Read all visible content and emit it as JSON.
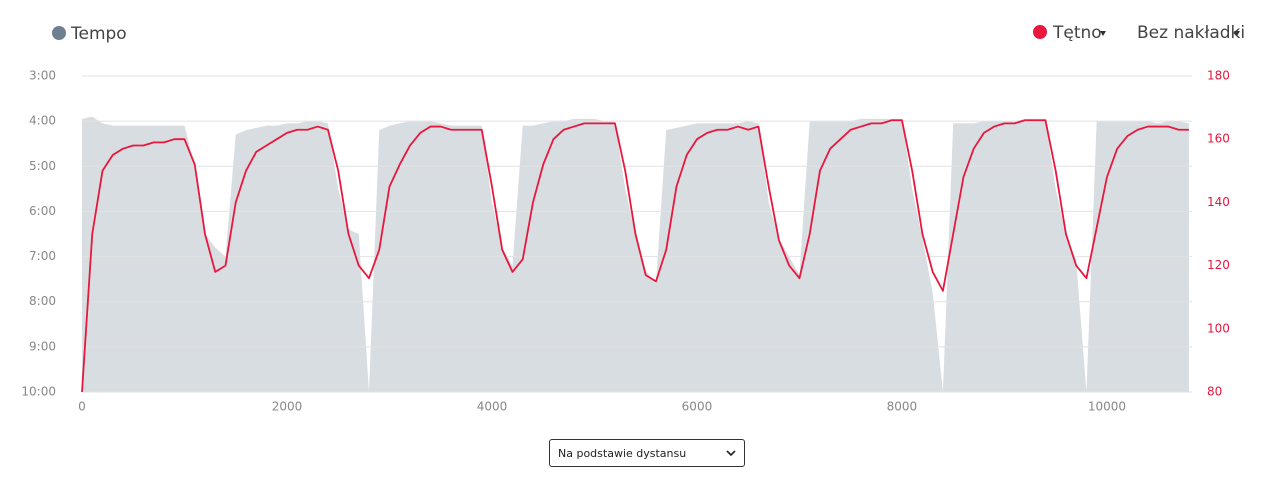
{
  "chart_data": {
    "type": "line",
    "x": [
      0,
      100,
      200,
      300,
      400,
      500,
      600,
      700,
      800,
      900,
      1000,
      1100,
      1200,
      1300,
      1400,
      1500,
      1600,
      1700,
      1800,
      1900,
      2000,
      2100,
      2200,
      2300,
      2400,
      2500,
      2600,
      2700,
      2800,
      2900,
      3000,
      3100,
      3200,
      3300,
      3400,
      3500,
      3600,
      3700,
      3800,
      3900,
      4000,
      4100,
      4200,
      4300,
      4400,
      4500,
      4600,
      4700,
      4800,
      4900,
      5000,
      5100,
      5200,
      5300,
      5400,
      5500,
      5600,
      5700,
      5800,
      5900,
      6000,
      6100,
      6200,
      6300,
      6400,
      6500,
      6600,
      6700,
      6800,
      6900,
      7000,
      7100,
      7200,
      7300,
      7400,
      7500,
      7600,
      7700,
      7800,
      7900,
      8000,
      8100,
      8200,
      8300,
      8400,
      8500,
      8600,
      8700,
      8800,
      8900,
      9000,
      9100,
      9200,
      9300,
      9400,
      9500,
      9600,
      9700,
      9800,
      9900,
      10000,
      10100,
      10200,
      10300,
      10400,
      10500,
      10600,
      10700,
      10800
    ],
    "xlim": [
      0,
      10830
    ],
    "xticks": [
      0,
      2000,
      4000,
      6000,
      8000,
      10000
    ],
    "ylim": [
      10,
      3
    ],
    "yticks": [
      {
        "value": 3,
        "label": "3:00"
      },
      {
        "value": 4,
        "label": "4:00"
      },
      {
        "value": 5,
        "label": "5:00"
      },
      {
        "value": 6,
        "label": "6:00"
      },
      {
        "value": 7,
        "label": "7:00"
      },
      {
        "value": 8,
        "label": "8:00"
      },
      {
        "value": 9,
        "label": "9:00"
      },
      {
        "value": 10,
        "label": "10:00"
      }
    ],
    "y2lim": [
      80,
      180
    ],
    "y2ticks": [
      80,
      100,
      120,
      140,
      160,
      180
    ],
    "grid": true,
    "series": [
      {
        "name": "Tempo",
        "type": "area",
        "color": "#6e8090",
        "values": [
          3.95,
          3.9,
          4.05,
          4.1,
          4.1,
          4.1,
          4.1,
          4.1,
          4.1,
          4.1,
          4.1,
          5.0,
          6.5,
          6.8,
          7.0,
          4.3,
          4.2,
          4.15,
          4.1,
          4.1,
          4.05,
          4.05,
          4.0,
          4.0,
          4.05,
          5.5,
          6.4,
          6.5,
          10,
          4.2,
          4.1,
          4.05,
          4.0,
          4.0,
          4.0,
          4.05,
          4.1,
          4.1,
          4.1,
          4.1,
          5.8,
          6.8,
          7.2,
          4.1,
          4.1,
          4.05,
          4.0,
          4.0,
          3.95,
          3.95,
          3.95,
          4.0,
          4.0,
          5.5,
          6.5,
          7.3,
          7.6,
          4.2,
          4.15,
          4.1,
          4.05,
          4.05,
          4.05,
          4.05,
          4.05,
          4.0,
          4.05,
          5.8,
          6.6,
          7.0,
          7.4,
          4.0,
          4.0,
          4.0,
          4.0,
          4.0,
          3.95,
          3.95,
          3.95,
          3.95,
          3.95,
          5.5,
          6.6,
          7.8,
          10,
          4.05,
          4.05,
          4.05,
          4.0,
          4.0,
          4.0,
          4.0,
          3.95,
          3.95,
          3.95,
          5.5,
          6.5,
          7.1,
          10,
          4.0,
          4.0,
          4.0,
          4.0,
          4.0,
          4.0,
          4.05,
          4.0,
          4.0,
          4.05
        ]
      },
      {
        "name": "Tętno",
        "type": "line",
        "color": "#e8173d",
        "axis": "y2",
        "values": [
          80,
          130,
          150,
          155,
          157,
          158,
          158,
          159,
          159,
          160,
          160,
          152,
          130,
          118,
          120,
          140,
          150,
          156,
          158,
          160,
          162,
          163,
          163,
          164,
          163,
          150,
          130,
          120,
          116,
          125,
          145,
          152,
          158,
          162,
          164,
          164,
          163,
          163,
          163,
          163,
          145,
          125,
          118,
          122,
          140,
          152,
          160,
          163,
          164,
          165,
          165,
          165,
          165,
          150,
          130,
          117,
          115,
          125,
          145,
          155,
          160,
          162,
          163,
          163,
          164,
          163,
          164,
          145,
          128,
          120,
          116,
          130,
          150,
          157,
          160,
          163,
          164,
          165,
          165,
          166,
          166,
          150,
          130,
          118,
          112,
          130,
          148,
          157,
          162,
          164,
          165,
          165,
          166,
          166,
          166,
          150,
          130,
          120,
          116,
          132,
          148,
          157,
          161,
          163,
          164,
          164,
          164,
          163,
          163
        ]
      }
    ]
  },
  "controls": {
    "overlay": "Bez nakładki",
    "basis": "Na podstawie dystansu"
  }
}
